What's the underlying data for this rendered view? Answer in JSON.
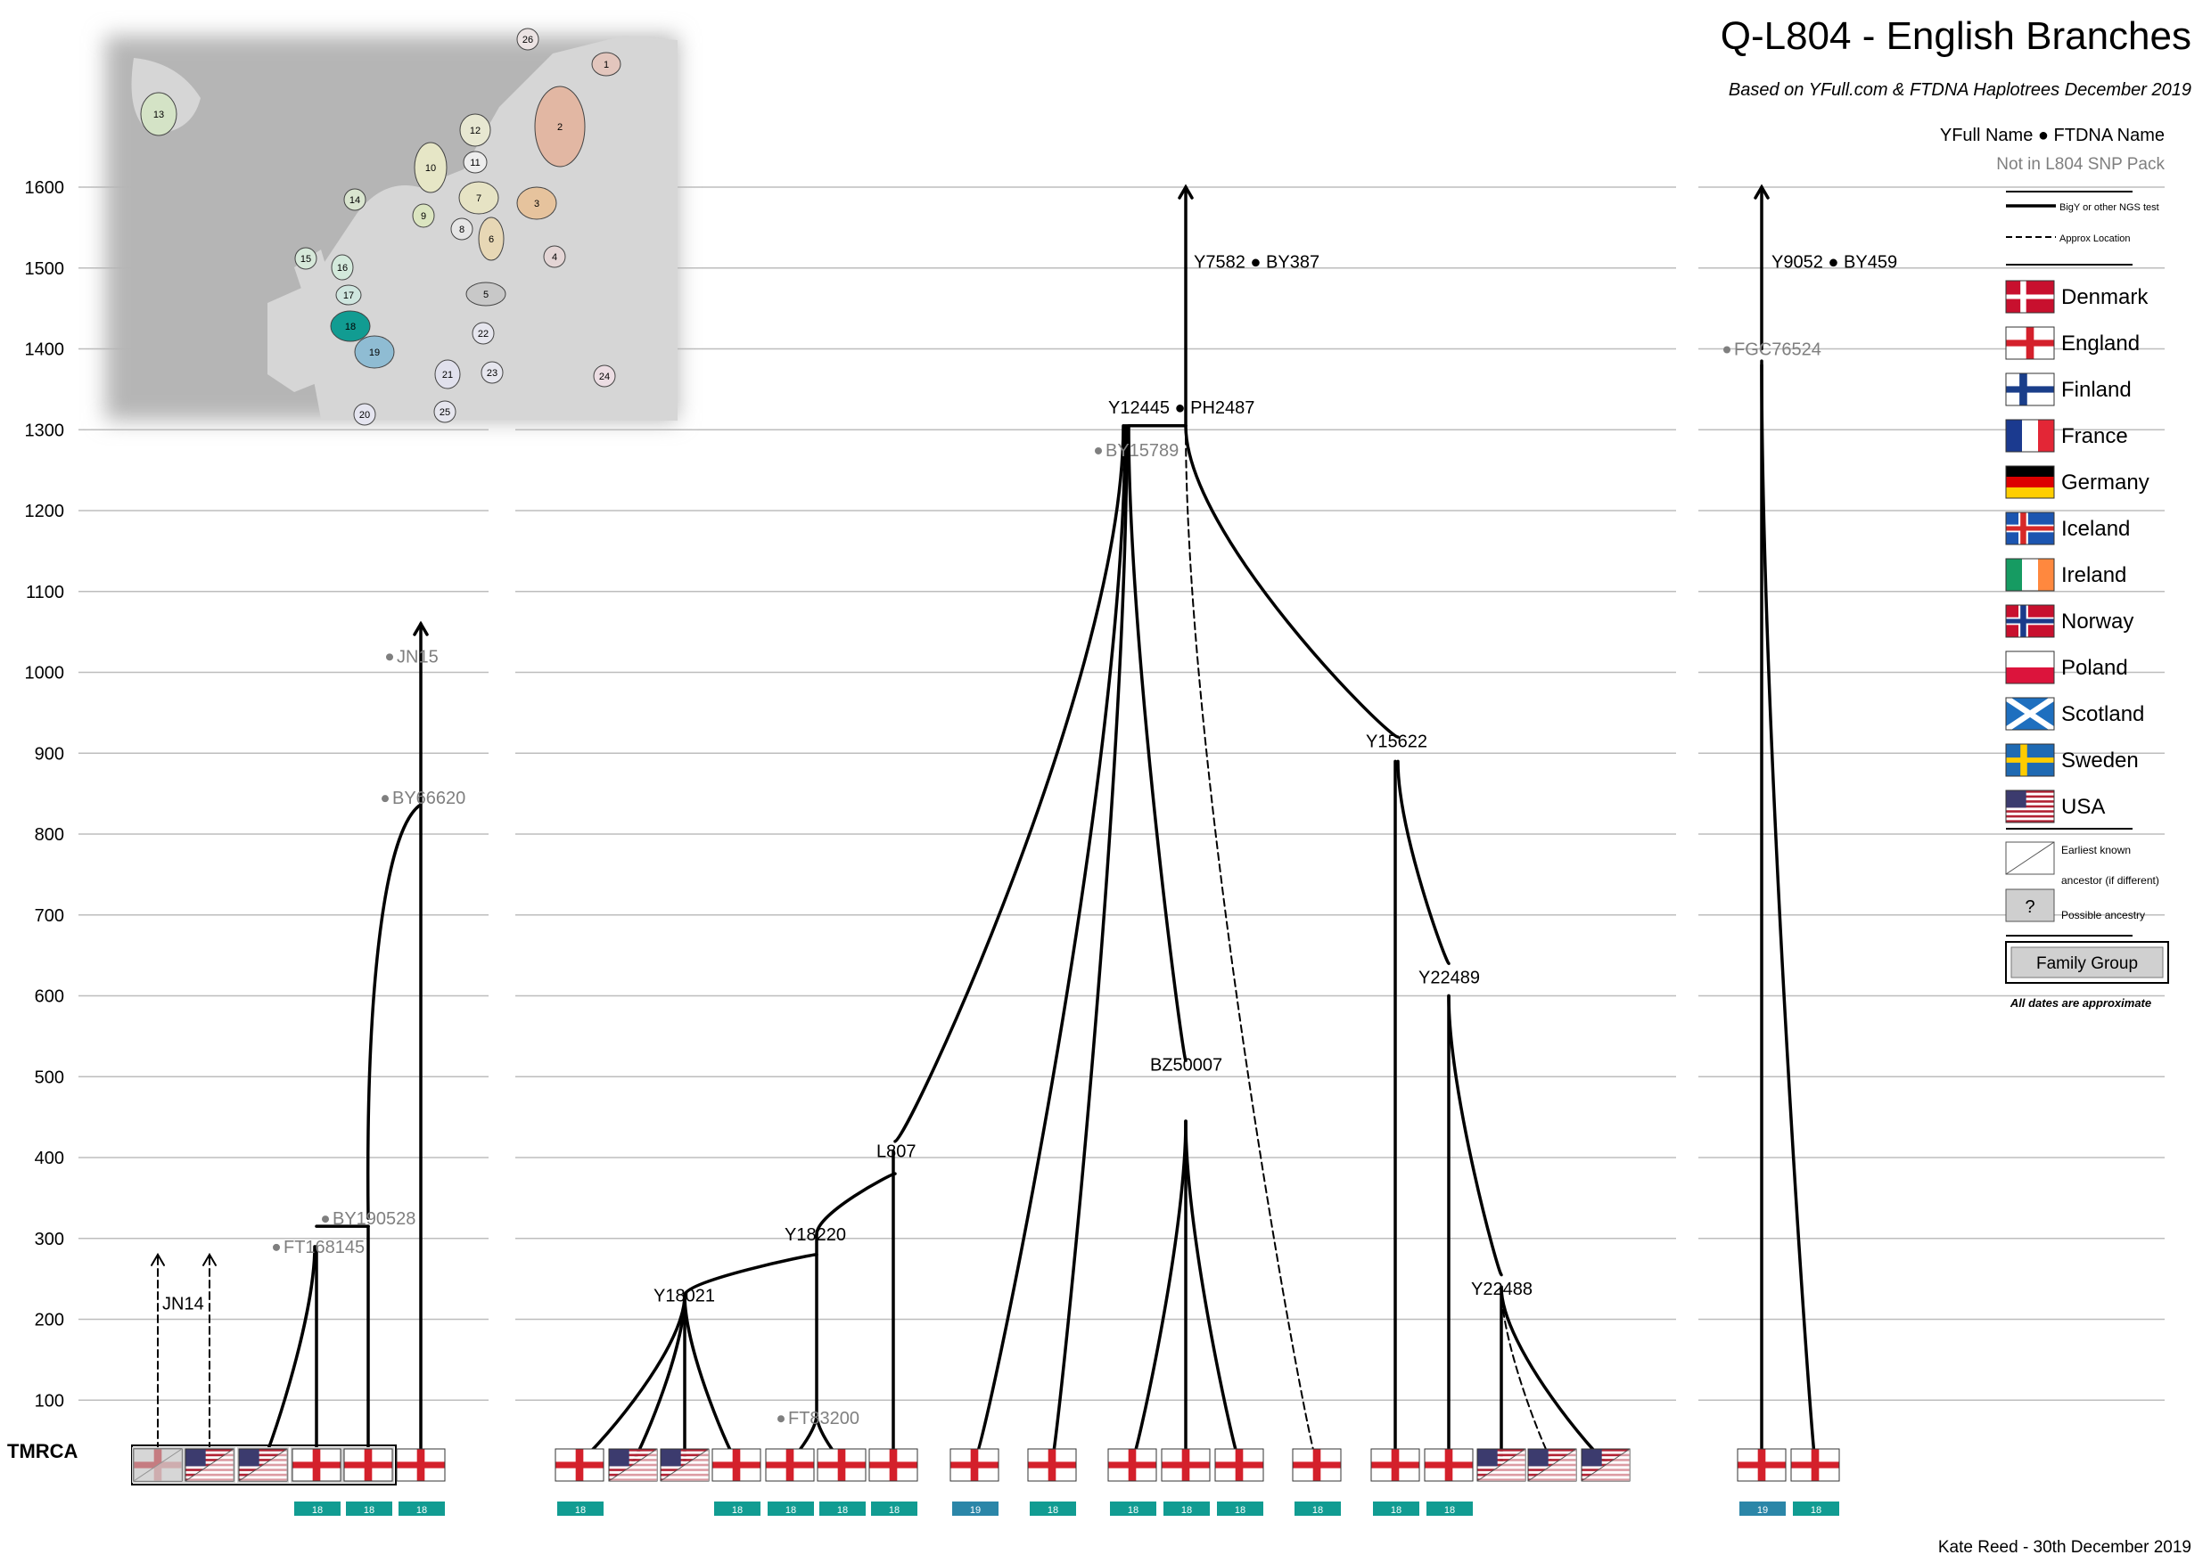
{
  "header": {
    "title": "Q-L804 - English Branches",
    "subtitle": "Based on YFull.com & FTDNA Haplotrees December 2019"
  },
  "footer": {
    "author": "Kate Reed - 30th December 2019"
  },
  "axis": {
    "tmrca_label": "TMRCA",
    "ticks": [
      {
        "label": "100",
        "value": 100
      },
      {
        "label": "200",
        "value": 200
      },
      {
        "label": "300",
        "value": 300
      },
      {
        "label": "400",
        "value": 400
      },
      {
        "label": "500",
        "value": 500
      },
      {
        "label": "600",
        "value": 600
      },
      {
        "label": "700",
        "value": 700
      },
      {
        "label": "800",
        "value": 800
      },
      {
        "label": "900",
        "value": 900
      },
      {
        "label": "1000",
        "value": 1000
      },
      {
        "label": "1100",
        "value": 1100
      },
      {
        "label": "1200",
        "value": 1200
      },
      {
        "label": "1300",
        "value": 1300
      },
      {
        "label": "1400",
        "value": 1400
      },
      {
        "label": "1500",
        "value": 1500
      },
      {
        "label": "1600",
        "value": 1600
      }
    ]
  },
  "legend": {
    "name_format": "YFull Name ● FTDNA Name",
    "not_in_pack": "Not in L804 SNP Pack",
    "test_solid": "BigY or other NGS test",
    "test_dashed": "Approx Location",
    "countries": [
      {
        "flag": "dk",
        "label": "Denmark"
      },
      {
        "flag": "en",
        "label": "England"
      },
      {
        "flag": "fi",
        "label": "Finland"
      },
      {
        "flag": "fr",
        "label": "France"
      },
      {
        "flag": "de",
        "label": "Germany"
      },
      {
        "flag": "is",
        "label": "Iceland"
      },
      {
        "flag": "ie",
        "label": "Ireland"
      },
      {
        "flag": "no",
        "label": "Norway"
      },
      {
        "flag": "pl",
        "label": "Poland"
      },
      {
        "flag": "sc",
        "label": "Scotland"
      },
      {
        "flag": "se",
        "label": "Sweden"
      },
      {
        "flag": "us",
        "label": "USA"
      }
    ],
    "earliest_a": "Earliest known",
    "earliest_b": "ancestor (if different)",
    "possible_mark": "?",
    "possible": "Possible ancestry",
    "family_group": "Family Group",
    "dates_note": "All dates are approximate"
  },
  "map_regions": [
    {
      "n": "1"
    },
    {
      "n": "2"
    },
    {
      "n": "3"
    },
    {
      "n": "4"
    },
    {
      "n": "5"
    },
    {
      "n": "6"
    },
    {
      "n": "7"
    },
    {
      "n": "8"
    },
    {
      "n": "9"
    },
    {
      "n": "10"
    },
    {
      "n": "11"
    },
    {
      "n": "12"
    },
    {
      "n": "13"
    },
    {
      "n": "14"
    },
    {
      "n": "15"
    },
    {
      "n": "16"
    },
    {
      "n": "17"
    },
    {
      "n": "18"
    },
    {
      "n": "19"
    },
    {
      "n": "20"
    },
    {
      "n": "21"
    },
    {
      "n": "22"
    },
    {
      "n": "23"
    },
    {
      "n": "24"
    },
    {
      "n": "25"
    },
    {
      "n": "26"
    }
  ],
  "nodes": [
    {
      "id": "jn14",
      "text": "JN14",
      "year": 220,
      "grey": false
    },
    {
      "id": "ft168145",
      "text": "FT168145",
      "year": 290,
      "grey": true
    },
    {
      "id": "by190528",
      "text": "BY190528",
      "year": 325,
      "grey": true
    },
    {
      "id": "by66620",
      "text": "BY66620",
      "year": 845,
      "grey": true
    },
    {
      "id": "jn15",
      "text": "JN15",
      "year": 1020,
      "grey": true
    },
    {
      "id": "y18021",
      "text": "Y18021",
      "year": 230,
      "grey": false
    },
    {
      "id": "y18220",
      "text": "Y18220",
      "year": 305,
      "grey": false
    },
    {
      "id": "l807",
      "text": "L807",
      "year": 408,
      "grey": false
    },
    {
      "id": "ft83200",
      "text": "FT83200",
      "year": 78,
      "grey": true
    },
    {
      "id": "by15789",
      "text": "BY15789",
      "year": 1275,
      "grey": true
    },
    {
      "id": "y12445",
      "text": "Y12445 ● PH2487",
      "year": 1328,
      "grey": false
    },
    {
      "id": "y7582",
      "text": "Y7582 ● BY387",
      "year": 1508,
      "grey": false
    },
    {
      "id": "bz50007",
      "text": "BZ50007",
      "year": 515,
      "grey": false
    },
    {
      "id": "y15622",
      "text": "Y15622",
      "year": 915,
      "grey": false
    },
    {
      "id": "y22489",
      "text": "Y22489",
      "year": 623,
      "grey": false
    },
    {
      "id": "y22488",
      "text": "Y22488",
      "year": 238,
      "grey": false
    },
    {
      "id": "fgc76524",
      "text": "FGC76524",
      "year": 1400,
      "grey": true
    },
    {
      "id": "y9052",
      "text": "Y9052 ● BY459",
      "year": 1508,
      "grey": false
    }
  ],
  "samples": [
    {
      "flag": "en",
      "earliest": "en",
      "region": "",
      "family": true,
      "possible": true
    },
    {
      "flag": "us",
      "earliest": "en",
      "region": "",
      "family": true
    },
    {
      "flag": "us",
      "earliest": "en",
      "region": "",
      "family": true
    },
    {
      "flag": "en",
      "region": "18",
      "family": true
    },
    {
      "flag": "en",
      "region": "18",
      "family": true
    },
    {
      "flag": "en",
      "region": "18"
    },
    {
      "flag": "en",
      "region": "18"
    },
    {
      "flag": "us",
      "earliest": "en",
      "region": ""
    },
    {
      "flag": "us",
      "earliest": "en",
      "region": ""
    },
    {
      "flag": "en",
      "region": "18"
    },
    {
      "flag": "en",
      "region": "18"
    },
    {
      "flag": "en",
      "region": "18"
    },
    {
      "flag": "en",
      "region": "18"
    },
    {
      "flag": "en",
      "region": "19"
    },
    {
      "flag": "en",
      "region": "18"
    },
    {
      "flag": "en",
      "region": "18"
    },
    {
      "flag": "en",
      "region": "18"
    },
    {
      "flag": "en",
      "region": "18"
    },
    {
      "flag": "en",
      "region": "18"
    },
    {
      "flag": "en",
      "region": "18"
    },
    {
      "flag": "en",
      "region": "18"
    },
    {
      "flag": "us",
      "earliest": "en",
      "region": ""
    },
    {
      "flag": "us",
      "earliest": "en",
      "region": ""
    },
    {
      "flag": "us",
      "earliest": "en",
      "region": ""
    },
    {
      "flag": "en",
      "region": "19"
    },
    {
      "flag": "en",
      "region": "18"
    }
  ],
  "colors": {
    "region18": "#119c92",
    "region19": "#2b86a8",
    "grid": "#bdbdbd",
    "grey_text": "#7f7f7f",
    "map_land": "#d6d6d6",
    "map_sea": "#b5b5b5"
  }
}
